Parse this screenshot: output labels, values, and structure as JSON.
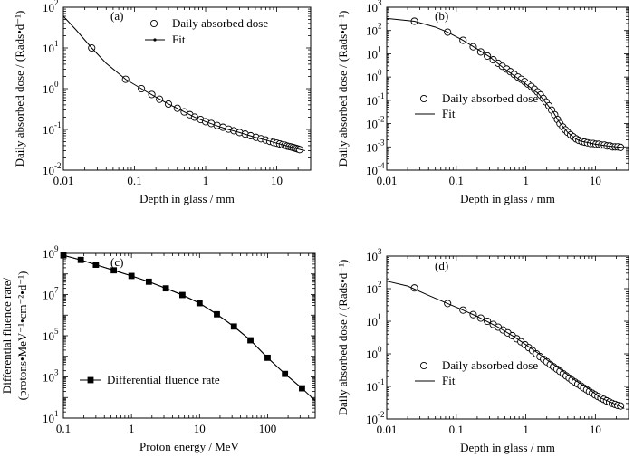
{
  "chart_data": [
    {
      "type": "scatter",
      "panel_label": "(a)",
      "xlabel": "Depth in glass / mm",
      "ylabel": "Daily absorbed dose / (Rads•d⁻¹)",
      "xscale": "log",
      "yscale": "log",
      "xlim": [
        0.01,
        30
      ],
      "ylim": [
        0.01,
        100
      ],
      "xticks": [
        {
          "v": 0.01,
          "label": "0.01"
        },
        {
          "v": 0.1,
          "label": "0.1"
        },
        {
          "v": 1,
          "label": "1"
        },
        {
          "v": 10,
          "label": "10"
        }
      ],
      "yticks": [
        {
          "v": 0.01,
          "b": "10",
          "e": "-2"
        },
        {
          "v": 0.1,
          "b": "10",
          "e": "-1"
        },
        {
          "v": 1,
          "b": "10",
          "e": "0"
        },
        {
          "v": 10,
          "b": "10",
          "e": "1"
        },
        {
          "v": 100,
          "b": "10",
          "e": "2"
        }
      ],
      "legend": {
        "position": "top-right",
        "entries": [
          {
            "marker": "circle",
            "text": "Daily absorbed dose"
          },
          {
            "marker": "line-dot",
            "text": "Fit"
          }
        ]
      },
      "series": [
        {
          "name": "Daily absorbed dose",
          "kind": "markers",
          "marker": "circle",
          "x": [
            0.025,
            0.075,
            0.125,
            0.175,
            0.225,
            0.3,
            0.4,
            0.5,
            0.6,
            0.7,
            0.85,
            1,
            1.2,
            1.45,
            1.75,
            2.1,
            2.5,
            3,
            3.6,
            4.3,
            5.1,
            6,
            7,
            8,
            9,
            10,
            11,
            12,
            13,
            14,
            15,
            16,
            17,
            18,
            19,
            20,
            21
          ],
          "y": [
            10,
            1.7,
            1.0,
            0.72,
            0.55,
            0.42,
            0.33,
            0.27,
            0.23,
            0.2,
            0.175,
            0.155,
            0.14,
            0.125,
            0.113,
            0.102,
            0.093,
            0.084,
            0.077,
            0.07,
            0.064,
            0.059,
            0.055,
            0.051,
            0.048,
            0.046,
            0.044,
            0.042,
            0.041,
            0.039,
            0.038,
            0.037,
            0.036,
            0.035,
            0.034,
            0.033,
            0.032
          ]
        },
        {
          "name": "Fit",
          "kind": "line",
          "x": [
            0.01,
            0.015,
            0.025,
            0.04,
            0.075,
            0.125,
            0.2,
            0.3,
            0.5,
            0.7,
            1,
            1.5,
            2,
            3,
            5,
            7,
            10,
            15,
            20,
            25
          ],
          "y": [
            60,
            28,
            10,
            4.2,
            1.7,
            1.0,
            0.62,
            0.42,
            0.27,
            0.2,
            0.155,
            0.12,
            0.102,
            0.084,
            0.064,
            0.055,
            0.046,
            0.038,
            0.033,
            0.03
          ]
        }
      ]
    },
    {
      "type": "scatter",
      "panel_label": "(b)",
      "xlabel": "Depth in glass / mm",
      "ylabel": "Daily absorbed dose / (Rads•d⁻¹)",
      "xscale": "log",
      "yscale": "log",
      "xlim": [
        0.01,
        30
      ],
      "ylim": [
        0.0001,
        1000
      ],
      "xticks": [
        {
          "v": 0.01,
          "label": "0.01"
        },
        {
          "v": 0.1,
          "label": "0.1"
        },
        {
          "v": 1,
          "label": "1"
        },
        {
          "v": 10,
          "label": "10"
        }
      ],
      "yticks": [
        {
          "v": 0.0001,
          "b": "10",
          "e": "-4"
        },
        {
          "v": 0.001,
          "b": "10",
          "e": "-3"
        },
        {
          "v": 0.01,
          "b": "10",
          "e": "-2"
        },
        {
          "v": 0.1,
          "b": "10",
          "e": "-1"
        },
        {
          "v": 1,
          "b": "10",
          "e": "0"
        },
        {
          "v": 10,
          "b": "10",
          "e": "1"
        },
        {
          "v": 100,
          "b": "10",
          "e": "2"
        },
        {
          "v": 1000,
          "b": "10",
          "e": "3"
        }
      ],
      "legend": {
        "position": "center-right",
        "entries": [
          {
            "marker": "circle",
            "text": "Daily absorbed dose"
          },
          {
            "marker": "line",
            "text": "Fit"
          }
        ]
      },
      "series": [
        {
          "name": "Daily absorbed dose",
          "kind": "markers",
          "marker": "circle",
          "x": [
            0.025,
            0.075,
            0.125,
            0.175,
            0.225,
            0.28,
            0.34,
            0.4,
            0.46,
            0.53,
            0.6,
            0.68,
            0.77,
            0.86,
            0.96,
            1.07,
            1.2,
            1.33,
            1.47,
            1.62,
            1.78,
            1.95,
            2.15,
            2.35,
            2.6,
            2.85,
            3.1,
            3.4,
            3.7,
            4.0,
            4.4,
            4.8,
            5.3,
            5.8,
            6.4,
            7.0,
            7.7,
            8.5,
            9.3,
            10.2,
            11.2,
            12.3,
            13.5,
            14.8,
            16.2,
            17.7,
            19.3,
            21,
            23
          ],
          "y": [
            250,
            85,
            38,
            20,
            12,
            8,
            5.5,
            3.9,
            2.9,
            2.2,
            1.7,
            1.3,
            1.0,
            0.8,
            0.64,
            0.5,
            0.39,
            0.3,
            0.23,
            0.17,
            0.12,
            0.085,
            0.058,
            0.038,
            0.024,
            0.015,
            0.01,
            0.0072,
            0.0054,
            0.0042,
            0.0033,
            0.0027,
            0.0022,
            0.0019,
            0.0017,
            0.0016,
            0.0015,
            0.0014,
            0.0014,
            0.0013,
            0.0013,
            0.0012,
            0.0012,
            0.0011,
            0.0011,
            0.001,
            0.001,
            0.001,
            0.00095
          ]
        },
        {
          "name": "Fit",
          "kind": "line",
          "x": [
            0.01,
            0.025,
            0.05,
            0.075,
            0.125,
            0.2,
            0.3,
            0.5,
            0.8,
            1,
            1.5,
            2,
            2.5,
            3,
            4,
            5,
            6,
            8,
            10,
            15,
            20,
            25
          ],
          "y": [
            330,
            250,
            140,
            85,
            38,
            16,
            7.5,
            2.2,
            0.8,
            0.5,
            0.2,
            0.07,
            0.03,
            0.012,
            0.0042,
            0.0024,
            0.0018,
            0.0015,
            0.0013,
            0.0011,
            0.001,
            0.00095
          ]
        }
      ]
    },
    {
      "type": "line",
      "panel_label": "(c)",
      "xlabel": "Proton energy / MeV",
      "ylabel_lines": [
        "Differential fluence rate/",
        "(protons•MeV⁻¹•cm⁻²•d⁻¹)"
      ],
      "xscale": "log",
      "yscale": "log",
      "xlim": [
        0.1,
        500
      ],
      "ylim": [
        10,
        1000000000
      ],
      "xticks": [
        {
          "v": 0.1,
          "label": "0.1"
        },
        {
          "v": 1,
          "label": "1"
        },
        {
          "v": 10,
          "label": "10"
        },
        {
          "v": 100,
          "label": "100"
        }
      ],
      "yticks": [
        {
          "v": 10,
          "b": "10",
          "e": "1"
        },
        {
          "v": 1000,
          "b": "10",
          "e": "3"
        },
        {
          "v": 100000,
          "b": "10",
          "e": "5"
        },
        {
          "v": 10000000,
          "b": "10",
          "e": "7"
        },
        {
          "v": 1000000000,
          "b": "10",
          "e": "9"
        }
      ],
      "legend": {
        "position": "bottom-left",
        "entries": [
          {
            "marker": "square-line",
            "text": "Differential fluence rate"
          }
        ]
      },
      "series": [
        {
          "name": "Differential fluence rate",
          "kind": "markers-line",
          "marker": "square",
          "x": [
            0.1,
            0.18,
            0.3,
            0.55,
            1,
            1.8,
            3.2,
            5.6,
            10,
            18,
            32,
            56,
            100,
            180,
            320
          ],
          "y": [
            800000000,
            480000000,
            280000000,
            150000000,
            80000000,
            42000000,
            20000000,
            9500000,
            3800000,
            1100000,
            280000,
            60000,
            8500,
            1400,
            280
          ]
        },
        {
          "name": "",
          "kind": "line",
          "x": [
            0.1,
            0.18,
            0.3,
            0.55,
            1,
            1.8,
            3.2,
            5.6,
            10,
            18,
            32,
            56,
            100,
            180,
            320,
            500
          ],
          "y": [
            800000000,
            480000000,
            280000000,
            150000000,
            80000000,
            42000000,
            20000000,
            9500000,
            3800000,
            1100000,
            280000,
            60000,
            8500,
            1400,
            280,
            70
          ]
        }
      ]
    },
    {
      "type": "scatter",
      "panel_label": "(d)",
      "xlabel": "Depth in glass / mm",
      "ylabel": "Daily absorbed dose / (Rads•d⁻¹)",
      "xscale": "log",
      "yscale": "log",
      "xlim": [
        0.01,
        30
      ],
      "ylim": [
        0.01,
        1000
      ],
      "xticks": [
        {
          "v": 0.01,
          "label": "0.01"
        },
        {
          "v": 0.1,
          "label": "0.1"
        },
        {
          "v": 1,
          "label": "1"
        },
        {
          "v": 10,
          "label": "10"
        }
      ],
      "yticks": [
        {
          "v": 0.01,
          "b": "10",
          "e": "-2"
        },
        {
          "v": 0.1,
          "b": "10",
          "e": "-1"
        },
        {
          "v": 1,
          "b": "10",
          "e": "0"
        },
        {
          "v": 10,
          "b": "10",
          "e": "1"
        },
        {
          "v": 100,
          "b": "10",
          "e": "2"
        },
        {
          "v": 1000,
          "b": "10",
          "e": "3"
        }
      ],
      "legend": {
        "position": "bottom-right",
        "entries": [
          {
            "marker": "circle",
            "text": "Daily absorbed dose"
          },
          {
            "marker": "line",
            "text": "Fit"
          }
        ]
      },
      "series": [
        {
          "name": "Daily absorbed dose",
          "kind": "markers",
          "marker": "circle",
          "x": [
            0.025,
            0.075,
            0.125,
            0.175,
            0.225,
            0.28,
            0.34,
            0.4,
            0.47,
            0.55,
            0.64,
            0.74,
            0.85,
            0.97,
            1.1,
            1.25,
            1.42,
            1.6,
            1.8,
            2.0,
            2.25,
            2.5,
            2.8,
            3.1,
            3.45,
            3.8,
            4.2,
            4.6,
            5.1,
            5.6,
            6.2,
            6.8,
            7.5,
            8.2,
            9,
            9.9,
            10.9,
            12,
            13.2,
            14.5,
            16,
            17.5,
            19.2,
            21,
            23
          ],
          "y": [
            105,
            35,
            22,
            16,
            12.5,
            10,
            8,
            6.6,
            5.4,
            4.4,
            3.6,
            2.9,
            2.35,
            1.9,
            1.55,
            1.25,
            1.0,
            0.82,
            0.68,
            0.57,
            0.47,
            0.4,
            0.34,
            0.29,
            0.245,
            0.21,
            0.18,
            0.155,
            0.135,
            0.118,
            0.103,
            0.09,
            0.079,
            0.07,
            0.062,
            0.055,
            0.049,
            0.044,
            0.04,
            0.036,
            0.033,
            0.03,
            0.028,
            0.026,
            0.025
          ]
        },
        {
          "name": "Fit",
          "kind": "line",
          "x": [
            0.01,
            0.02,
            0.04,
            0.075,
            0.125,
            0.2,
            0.4,
            0.7,
            1,
            1.5,
            2,
            3,
            5,
            8,
            12,
            17,
            23,
            26
          ],
          "y": [
            170,
            120,
            62,
            35,
            22,
            14,
            6.6,
            3.2,
            1.9,
            1.05,
            0.66,
            0.36,
            0.16,
            0.085,
            0.044,
            0.032,
            0.024,
            0.021
          ]
        }
      ]
    }
  ]
}
